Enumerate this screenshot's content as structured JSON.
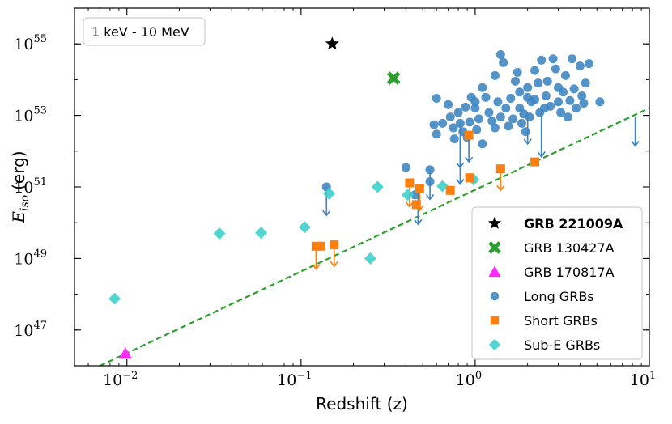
{
  "chart_data": {
    "type": "scatter",
    "title": "",
    "xlabel": "Redshift (z)",
    "ylabel_main": "E",
    "ylabel_sub": "iso",
    "ylabel_unit": "(erg)",
    "xscale": "log",
    "yscale": "log",
    "xlim": [
      0.005,
      10
    ],
    "ylim": [
      1e+46,
      1e+56
    ],
    "energy_band": "1 keV - 10 MeV",
    "x_ticks": [
      {
        "base": "10",
        "exp": "−2",
        "value": 0.01
      },
      {
        "base": "10",
        "exp": "−1",
        "value": 0.1
      },
      {
        "base": "10",
        "exp": "0",
        "value": 1
      },
      {
        "base": "10",
        "exp": "1",
        "value": 10
      }
    ],
    "y_ticks": [
      {
        "base": "10",
        "exp": "47",
        "value": 1e+47
      },
      {
        "base": "10",
        "exp": "49",
        "value": 1e+49
      },
      {
        "base": "10",
        "exp": "51",
        "value": 1e+51
      },
      {
        "base": "10",
        "exp": "53",
        "value": 1e+53
      },
      {
        "base": "10",
        "exp": "55",
        "value": 1e+55
      }
    ],
    "legend_position": "lower-right",
    "threshold_line": {
      "style": "dashed",
      "color": "#2ca02c",
      "points": [
        [
          0.007,
          1e+46
        ],
        [
          10,
          1.6e+53
        ]
      ]
    },
    "series": [
      {
        "name": "GRB 221009A",
        "marker": "star",
        "color": "#000000",
        "bold": true,
        "points": [
          [
            0.151,
            1e+55
          ]
        ]
      },
      {
        "name": "GRB 130427A",
        "marker": "x",
        "color": "#2ca02c",
        "bold": false,
        "points": [
          [
            0.34,
            1.1e+54
          ]
        ]
      },
      {
        "name": "GRB 170817A",
        "marker": "triangle",
        "color": "#ff2bff",
        "bold": false,
        "points": [
          [
            0.0098,
            2.2e+46
          ]
        ]
      },
      {
        "name": "Long GRBs",
        "marker": "circle",
        "color": "#3b84c0",
        "bold": false,
        "points": [
          [
            0.14,
            1e+51
          ],
          [
            0.4,
            3.5e+51
          ],
          [
            0.45,
            6e+50
          ],
          [
            0.55,
            1.4e+51
          ],
          [
            0.55,
            3e+51
          ],
          [
            0.6,
            3e+52
          ],
          [
            0.58,
            5.5e+52
          ],
          [
            0.6,
            3e+53
          ],
          [
            0.65,
            6e+52
          ],
          [
            0.7,
            2e+53
          ],
          [
            0.72,
            9e+52
          ],
          [
            0.75,
            4.5e+52
          ],
          [
            0.76,
            2.2e+52
          ],
          [
            0.8,
            1.2e+53
          ],
          [
            0.82,
            6e+52
          ],
          [
            0.85,
            3.5e+52
          ],
          [
            0.88,
            1.7e+53
          ],
          [
            0.9,
            2.4e+52
          ],
          [
            0.93,
            6.5e+52
          ],
          [
            0.95,
            3.2e+53
          ],
          [
            1.0,
            1.6e+53
          ],
          [
            1.0,
            2.4e+53
          ],
          [
            1.02,
            4e+52
          ],
          [
            1.05,
            8e+52
          ],
          [
            1.1,
            1.6e+52
          ],
          [
            1.1,
            6e+53
          ],
          [
            1.15,
            3.2e+53
          ],
          [
            1.2,
            1.2e+53
          ],
          [
            1.25,
            7e+52
          ],
          [
            1.3,
            1.3e+54
          ],
          [
            1.3,
            4.5e+52
          ],
          [
            1.35,
            2.4e+53
          ],
          [
            1.4,
            5e+54
          ],
          [
            1.4,
            9e+52
          ],
          [
            1.45,
            3e+54
          ],
          [
            1.5,
            1.6e+53
          ],
          [
            1.55,
            5e+52
          ],
          [
            1.6,
            3e+53
          ],
          [
            1.65,
            8e+52
          ],
          [
            1.7,
            9e+53
          ],
          [
            1.75,
            1.6e+54
          ],
          [
            1.8,
            4.5e+53
          ],
          [
            1.8,
            1.6e+53
          ],
          [
            1.85,
            6e+52
          ],
          [
            1.9,
            1.1e+53
          ],
          [
            1.95,
            3.5e+52
          ],
          [
            2.0,
            3.2e+53
          ],
          [
            2.0,
            6e+53
          ],
          [
            2.05,
            9e+52
          ],
          [
            2.1,
            2.4e+53
          ],
          [
            2.2,
            1.8e+54
          ],
          [
            2.2,
            2.8e+53
          ],
          [
            2.3,
            8e+53
          ],
          [
            2.35,
            1.2e+53
          ],
          [
            2.4,
            3.5e+54
          ],
          [
            2.5,
            1.6e+53
          ],
          [
            2.55,
            3.5e+53
          ],
          [
            2.6,
            9e+53
          ],
          [
            2.7,
            1.8e+53
          ],
          [
            2.8,
            3.8e+54
          ],
          [
            2.9,
            2e+54
          ],
          [
            3.0,
            6e+53
          ],
          [
            3.0,
            2.4e+53
          ],
          [
            3.1,
            1.2e+53
          ],
          [
            3.2,
            4.5e+53
          ],
          [
            3.3,
            1.3e+54
          ],
          [
            3.4,
            9e+52
          ],
          [
            3.5,
            2.6e+53
          ],
          [
            3.6,
            3.8e+54
          ],
          [
            3.7,
            5.5e+53
          ],
          [
            3.8,
            1.6e+53
          ],
          [
            4.0,
            2.4e+54
          ],
          [
            4.1,
            3.5e+53
          ],
          [
            4.2,
            2.2e+53
          ],
          [
            4.3,
            8e+53
          ],
          [
            4.5,
            2.8e+54
          ],
          [
            5.2,
            2.4e+53
          ]
        ]
      },
      {
        "name": "Short GRBs",
        "marker": "square",
        "color": "#ff7f0e",
        "bold": false,
        "points": [
          [
            0.122,
            2.2e+49
          ],
          [
            0.13,
            2.2e+49
          ],
          [
            0.155,
            2.4e+49
          ],
          [
            0.42,
            1.3e+51
          ],
          [
            0.46,
            3.2e+50
          ],
          [
            0.48,
            9e+50
          ],
          [
            0.72,
            8e+50
          ],
          [
            0.92,
            2.8e+52
          ],
          [
            0.93,
            1.8e+51
          ],
          [
            1.4,
            3.2e+51
          ],
          [
            2.2,
            5e+51
          ]
        ]
      },
      {
        "name": "Sub-E GRBs",
        "marker": "diamond",
        "color": "#3fd0cc",
        "bold": false,
        "points": [
          [
            0.0085,
            7.5e+47
          ],
          [
            0.034,
            5e+49
          ],
          [
            0.059,
            5.2e+49
          ],
          [
            0.105,
            7.5e+49
          ],
          [
            0.145,
            6.5e+50
          ],
          [
            0.25,
            1e+49
          ],
          [
            0.275,
            1e+51
          ],
          [
            0.41,
            6e+50
          ],
          [
            0.65,
            1.05e+51
          ],
          [
            0.98,
            1.6e+51
          ]
        ]
      }
    ],
    "upper_limits": [
      {
        "x": 0.14,
        "from": 1e+51,
        "to": 1.6e+50,
        "color": "#3b84c0"
      },
      {
        "x": 0.47,
        "from": 1.2e+51,
        "to": 9e+49,
        "color": "#3b84c0"
      },
      {
        "x": 0.55,
        "from": 3e+51,
        "to": 4.5e+50,
        "color": "#3b84c0"
      },
      {
        "x": 0.82,
        "from": 6e+52,
        "to": 1.2e+51,
        "color": "#3b84c0"
      },
      {
        "x": 0.82,
        "from": 2.2e+52,
        "to": 3.5e+51,
        "color": "#3b84c0"
      },
      {
        "x": 0.92,
        "from": 3e+52,
        "to": 5e+51,
        "color": "#3b84c0"
      },
      {
        "x": 2.0,
        "from": 1.1e+53,
        "to": 1.6e+52,
        "color": "#3b84c0"
      },
      {
        "x": 2.4,
        "from": 1.2e+53,
        "to": 7e+51,
        "color": "#3b84c0"
      },
      {
        "x": 8.3,
        "from": 9e+52,
        "to": 1.4e+52,
        "color": "#3b84c0"
      },
      {
        "x": 0.122,
        "from": 2.2e+49,
        "to": 5e+48,
        "color": "#ff7f0e"
      },
      {
        "x": 0.155,
        "from": 2.4e+49,
        "to": 6e+48,
        "color": "#ff7f0e"
      },
      {
        "x": 0.42,
        "from": 1.3e+51,
        "to": 2.8e+50,
        "color": "#ff7f0e"
      },
      {
        "x": 0.48,
        "from": 9e+50,
        "to": 2.2e+50,
        "color": "#ff7f0e"
      },
      {
        "x": 1.4,
        "from": 3.2e+51,
        "to": 8e+50,
        "color": "#ff7f0e"
      }
    ]
  }
}
